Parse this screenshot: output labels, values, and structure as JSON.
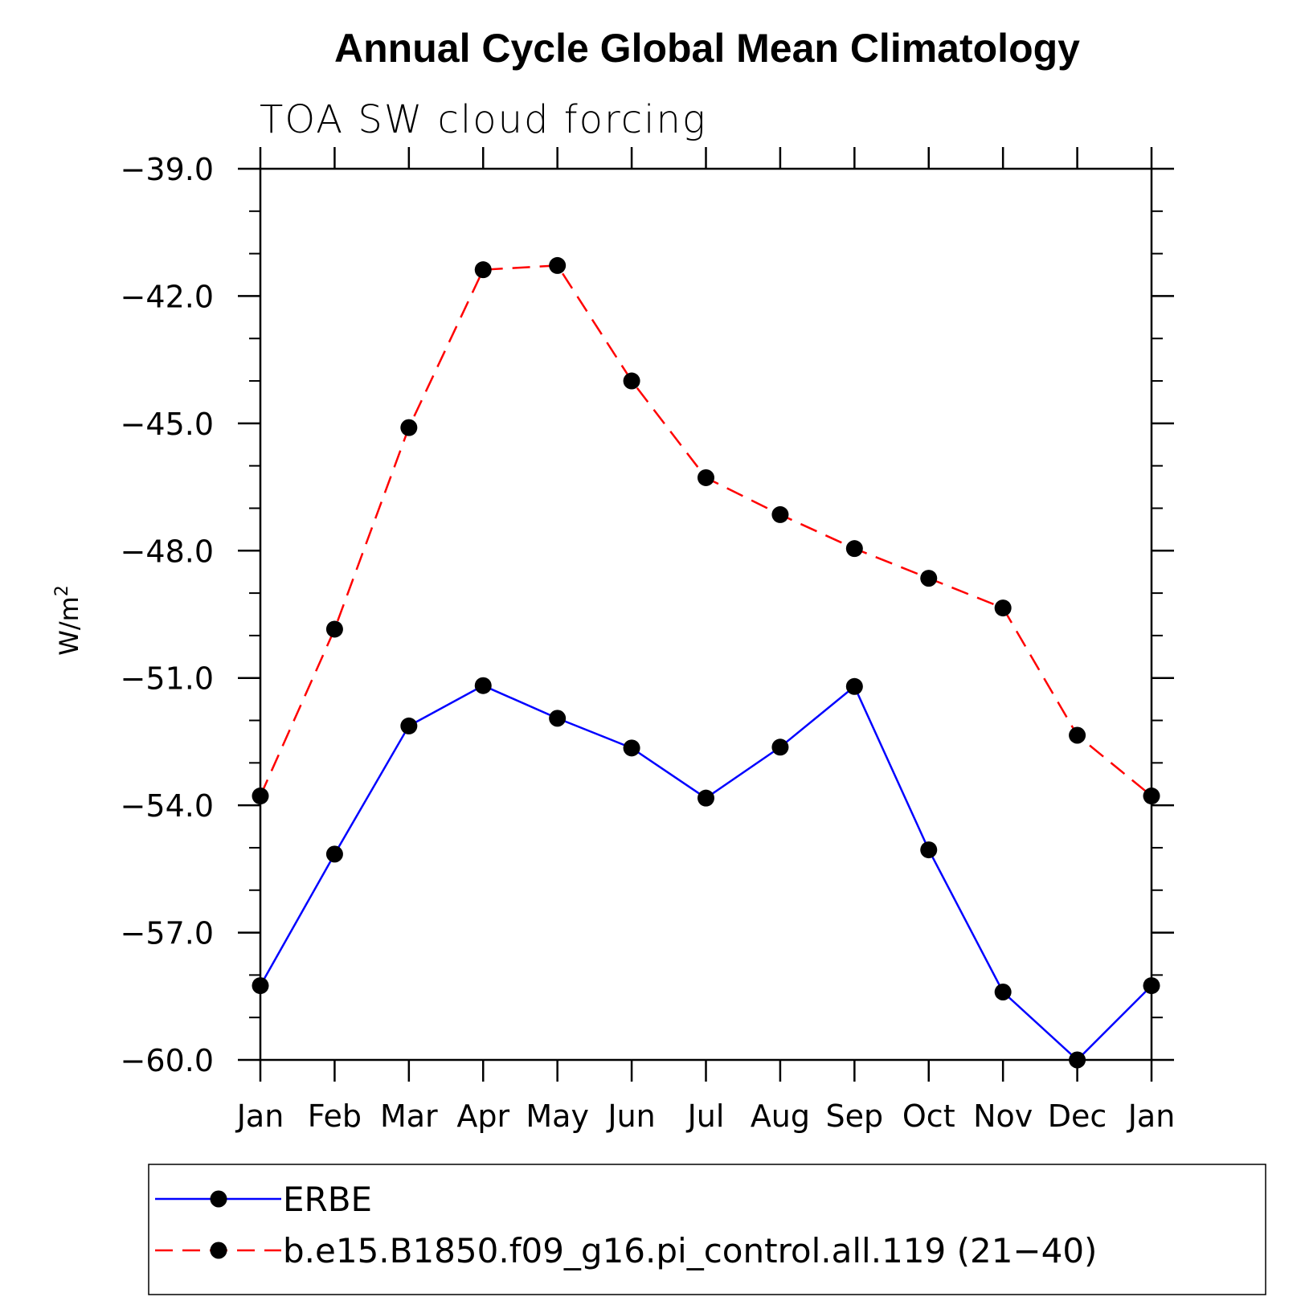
{
  "chart_data": {
    "type": "line",
    "title": "Annual Cycle Global Mean Climatology",
    "subtitle": "TOA SW cloud forcing",
    "ylabel": "W/m",
    "ylabel_sup": "2",
    "xlabel": "",
    "categories": [
      "Jan",
      "Feb",
      "Mar",
      "Apr",
      "May",
      "Jun",
      "Jul",
      "Aug",
      "Sep",
      "Oct",
      "Nov",
      "Dec",
      "Jan"
    ],
    "ylim": [
      -60.0,
      -39.0
    ],
    "yticks": [
      -39.0,
      -42.0,
      -45.0,
      -48.0,
      -51.0,
      -54.0,
      -57.0,
      -60.0
    ],
    "ytick_labels": [
      "−39.0",
      "−42.0",
      "−45.0",
      "−48.0",
      "−51.0",
      "−54.0",
      "−57.0",
      "−60.0"
    ],
    "grid": false,
    "legend_position": "bottom",
    "series": [
      {
        "name": "ERBE",
        "color": "#0000ff",
        "dash": "solid",
        "marker": "filled-circle",
        "values": [
          -58.25,
          -55.15,
          -52.13,
          -51.18,
          -51.95,
          -52.65,
          -53.83,
          -52.63,
          -51.2,
          -55.05,
          -58.4,
          -60.0,
          -58.25
        ]
      },
      {
        "name": "b.e15.B1850.f09_g16.pi_control.all.119 (21−40)",
        "color": "#ff0000",
        "dash": "dashed",
        "marker": "filled-circle",
        "values": [
          -53.78,
          -49.85,
          -45.1,
          -41.38,
          -41.28,
          -44.0,
          -46.28,
          -47.15,
          -47.95,
          -48.65,
          -49.35,
          -52.35,
          -53.78
        ]
      }
    ]
  }
}
